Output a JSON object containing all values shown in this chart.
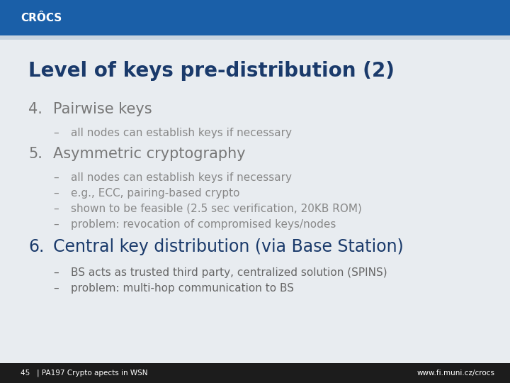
{
  "title": "Level of keys pre-distribution (2)",
  "title_color": "#1a3a6b",
  "title_fontsize": 20,
  "header_color": "#1a5fa8",
  "header_logo": "CRÔCS",
  "footer_bg": "#1c1c1c",
  "footer_left": "45   | PA197 Crypto apects in WSN",
  "footer_right": "www.fi.muni.cz/crocs",
  "footer_color": "#ffffff",
  "bg_color": "#e8ecf0",
  "slide_bg": "#ffffff",
  "items": [
    {
      "number": "4.",
      "text": "Pairwise keys",
      "level": 1,
      "fontsize": 15,
      "color": "#777777",
      "bold": false,
      "extra_space_before": 0.0
    },
    {
      "number": "–",
      "text": "all nodes can establish keys if necessary",
      "level": 2,
      "fontsize": 11,
      "color": "#888888",
      "bold": false,
      "extra_space_before": 0.0
    },
    {
      "number": "5.",
      "text": "Asymmetric cryptography",
      "level": 1,
      "fontsize": 15,
      "color": "#777777",
      "bold": false,
      "extra_space_before": 0.05
    },
    {
      "number": "–",
      "text": "all nodes can establish keys if necessary",
      "level": 2,
      "fontsize": 11,
      "color": "#888888",
      "bold": false,
      "extra_space_before": 0.0
    },
    {
      "number": "–",
      "text": "e.g., ECC, pairing-based crypto",
      "level": 2,
      "fontsize": 11,
      "color": "#888888",
      "bold": false,
      "extra_space_before": 0.0
    },
    {
      "number": "–",
      "text": "shown to be feasible (2.5 sec verification, 20KB ROM)",
      "level": 2,
      "fontsize": 11,
      "color": "#888888",
      "bold": false,
      "extra_space_before": 0.0
    },
    {
      "number": "–",
      "text": "problem: revocation of compromised keys/nodes",
      "level": 2,
      "fontsize": 11,
      "color": "#888888",
      "bold": false,
      "extra_space_before": 0.0
    },
    {
      "number": "6.",
      "text": "Central key distribution (via Base Station)",
      "level": 1,
      "fontsize": 17,
      "color": "#1a3a6b",
      "bold": false,
      "extra_space_before": 0.05
    },
    {
      "number": "–",
      "text": "BS acts as trusted third party, centralized solution (SPINS)",
      "level": 2,
      "fontsize": 11,
      "color": "#666666",
      "bold": false,
      "extra_space_before": 0.0
    },
    {
      "number": "–",
      "text": "problem: multi-hop communication to BS",
      "level": 2,
      "fontsize": 11,
      "color": "#666666",
      "bold": false,
      "extra_space_before": 0.0
    }
  ]
}
